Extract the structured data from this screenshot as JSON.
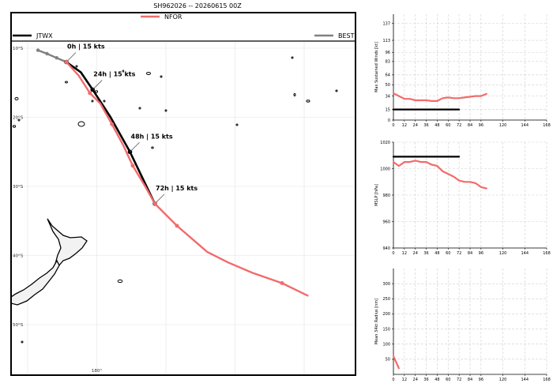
{
  "title": "SH962026 -- 20260615 00Z",
  "legend": {
    "nfor": {
      "label": "NFOR",
      "color": "#f26b6b"
    },
    "jtwx": {
      "label": "JTWX",
      "color": "#000000"
    },
    "best": {
      "label": "BEST",
      "color": "#808080"
    }
  },
  "chart_data": [
    {
      "type": "map",
      "lat_labels": [
        "10°S",
        "20°S",
        "30°S",
        "40°S",
        "50°S"
      ],
      "lon_labels": [
        "180°"
      ],
      "grid": true,
      "annotations": [
        "0h | 15 kts",
        "24h | 15 kts",
        "48h | 15 kts",
        "72h | 15 kts"
      ],
      "series": [
        {
          "name": "BEST",
          "color": "#808080",
          "points": [
            [
              -10.3,
              171.5
            ],
            [
              -10.8,
              172.8
            ],
            [
              -11.4,
              174.2
            ],
            [
              -12.0,
              175.6
            ]
          ]
        },
        {
          "name": "JTWX",
          "color": "#000000",
          "points": [
            [
              -12.0,
              175.6
            ],
            [
              -13.5,
              177.7
            ],
            [
              -16.0,
              179.4
            ],
            [
              -20.0,
              182.0
            ],
            [
              -25.0,
              184.8
            ],
            [
              -32.5,
              188.4
            ]
          ],
          "labeled_points": [
            [
              -12.0,
              175.6
            ],
            [
              -16.0,
              179.4
            ],
            [
              -25.0,
              184.8
            ],
            [
              -32.5,
              188.4
            ]
          ]
        },
        {
          "name": "NFOR",
          "color": "#f26b6b",
          "points": [
            [
              -12.0,
              175.6
            ],
            [
              -14.0,
              177.4
            ],
            [
              -16.5,
              179.0
            ],
            [
              -18.0,
              180.5
            ],
            [
              -21.0,
              182.2
            ],
            [
              -24.0,
              183.8
            ],
            [
              -27.0,
              185.2
            ],
            [
              -30.0,
              187.0
            ],
            [
              -32.5,
              188.4
            ],
            [
              -35.7,
              191.6
            ],
            [
              -39.5,
              196.0
            ],
            [
              -41.0,
              199.0
            ],
            [
              -42.5,
              202.5
            ],
            [
              -44.0,
              206.8
            ],
            [
              -45.8,
              210.5
            ]
          ],
          "markers": [
            [
              -12.0,
              175.6
            ],
            [
              -16.5,
              179.0
            ],
            [
              -21.0,
              182.2
            ],
            [
              -27.0,
              185.2
            ],
            [
              -32.5,
              188.4
            ],
            [
              -35.7,
              191.6
            ],
            [
              -44.0,
              206.8
            ]
          ]
        }
      ]
    },
    {
      "type": "line",
      "ylabel": "Max Sustained Winds [kt]",
      "xticks": [
        0,
        12,
        24,
        36,
        48,
        60,
        72,
        84,
        96,
        120,
        144,
        168
      ],
      "yticks": [
        0,
        15,
        34,
        50,
        64,
        83,
        96,
        113,
        137
      ],
      "ylim": [
        0,
        150
      ],
      "xlim": [
        0,
        168
      ],
      "series": [
        {
          "name": "NFOR",
          "color": "#f26b6b",
          "x": [
            0,
            6,
            12,
            18,
            24,
            30,
            36,
            42,
            48,
            54,
            60,
            66,
            72,
            78,
            84,
            90,
            96,
            102
          ],
          "y": [
            38,
            34,
            30,
            30,
            28,
            28,
            28,
            27,
            27,
            31,
            32,
            31,
            31,
            32,
            33,
            34,
            34,
            37
          ]
        },
        {
          "name": "JTWX",
          "color": "#000000",
          "x": [
            0,
            12,
            24,
            36,
            48,
            60,
            72
          ],
          "y": [
            15,
            15,
            15,
            15,
            15,
            15,
            15
          ]
        }
      ]
    },
    {
      "type": "line",
      "ylabel": "MSLP [hPa]",
      "xticks": [
        0,
        12,
        24,
        36,
        48,
        60,
        72,
        84,
        96,
        120,
        144,
        168
      ],
      "yticks": [
        940,
        960,
        980,
        1000,
        1020
      ],
      "ylim": [
        940,
        1020
      ],
      "xlim": [
        0,
        168
      ],
      "series": [
        {
          "name": "NFOR",
          "color": "#f26b6b",
          "x": [
            0,
            6,
            12,
            18,
            24,
            30,
            36,
            42,
            48,
            54,
            60,
            66,
            72,
            78,
            84,
            90,
            96,
            102
          ],
          "y": [
            1005,
            1002,
            1005,
            1005,
            1006,
            1005,
            1005,
            1003,
            1002,
            998,
            996,
            994,
            991,
            990,
            990,
            989,
            986,
            985
          ]
        },
        {
          "name": "JTWX",
          "color": "#000000",
          "x": [
            0,
            12,
            24,
            36,
            48,
            60,
            72
          ],
          "y": [
            1009,
            1009,
            1009,
            1009,
            1009,
            1009,
            1009
          ]
        }
      ]
    },
    {
      "type": "line",
      "ylabel": "Mean 34kt Radius [nm]",
      "xticks": [
        0,
        12,
        24,
        36,
        48,
        60,
        72,
        84,
        96,
        120,
        144,
        168
      ],
      "yticks": [
        50,
        100,
        150,
        200,
        250,
        300
      ],
      "ylim": [
        0,
        350
      ],
      "xlim": [
        0,
        168
      ],
      "series": [
        {
          "name": "NFOR",
          "color": "#f26b6b",
          "x": [
            0,
            6
          ],
          "y": [
            60,
            20
          ]
        }
      ]
    }
  ]
}
